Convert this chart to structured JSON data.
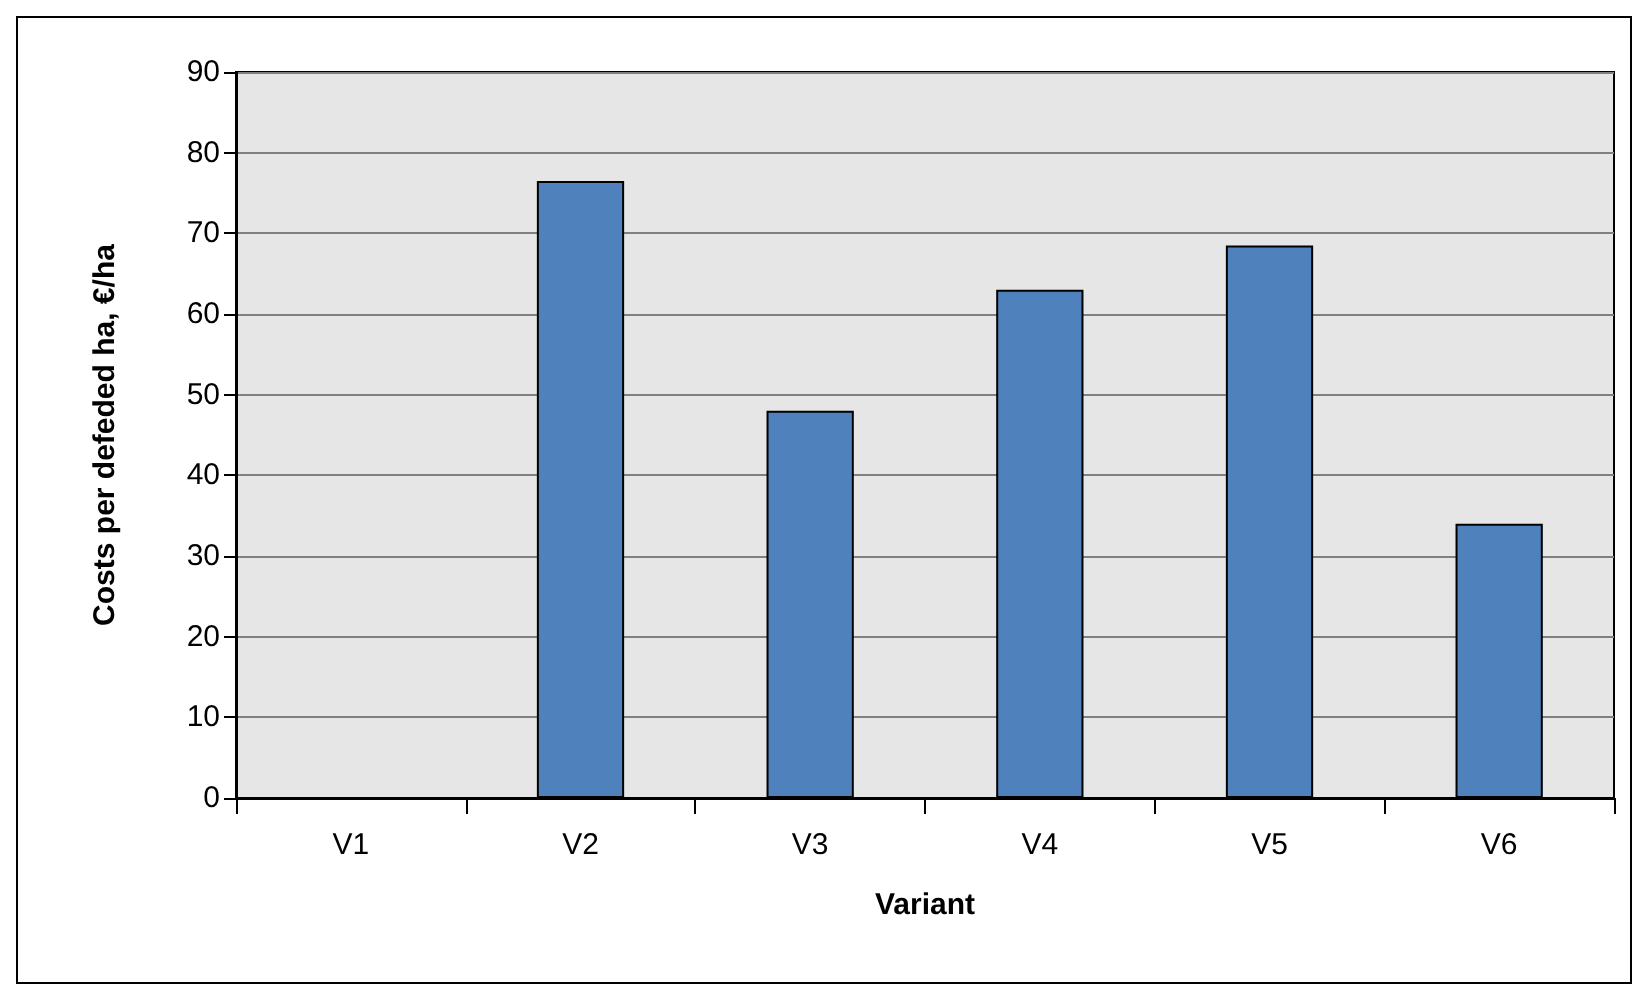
{
  "chart_data": {
    "type": "bar",
    "xlabel": "Variant",
    "ylabel": "Costs per defeded ha, €/ha",
    "categories": [
      "V1",
      "V2",
      "V3",
      "V4",
      "V5",
      "V6"
    ],
    "values": [
      null,
      76.5,
      48,
      63,
      68.5,
      34
    ],
    "color": "#4f81bd",
    "ylim": [
      0,
      90
    ],
    "yticks": [
      0,
      10,
      20,
      30,
      40,
      50,
      60,
      70,
      80,
      90
    ],
    "grid": "y"
  }
}
